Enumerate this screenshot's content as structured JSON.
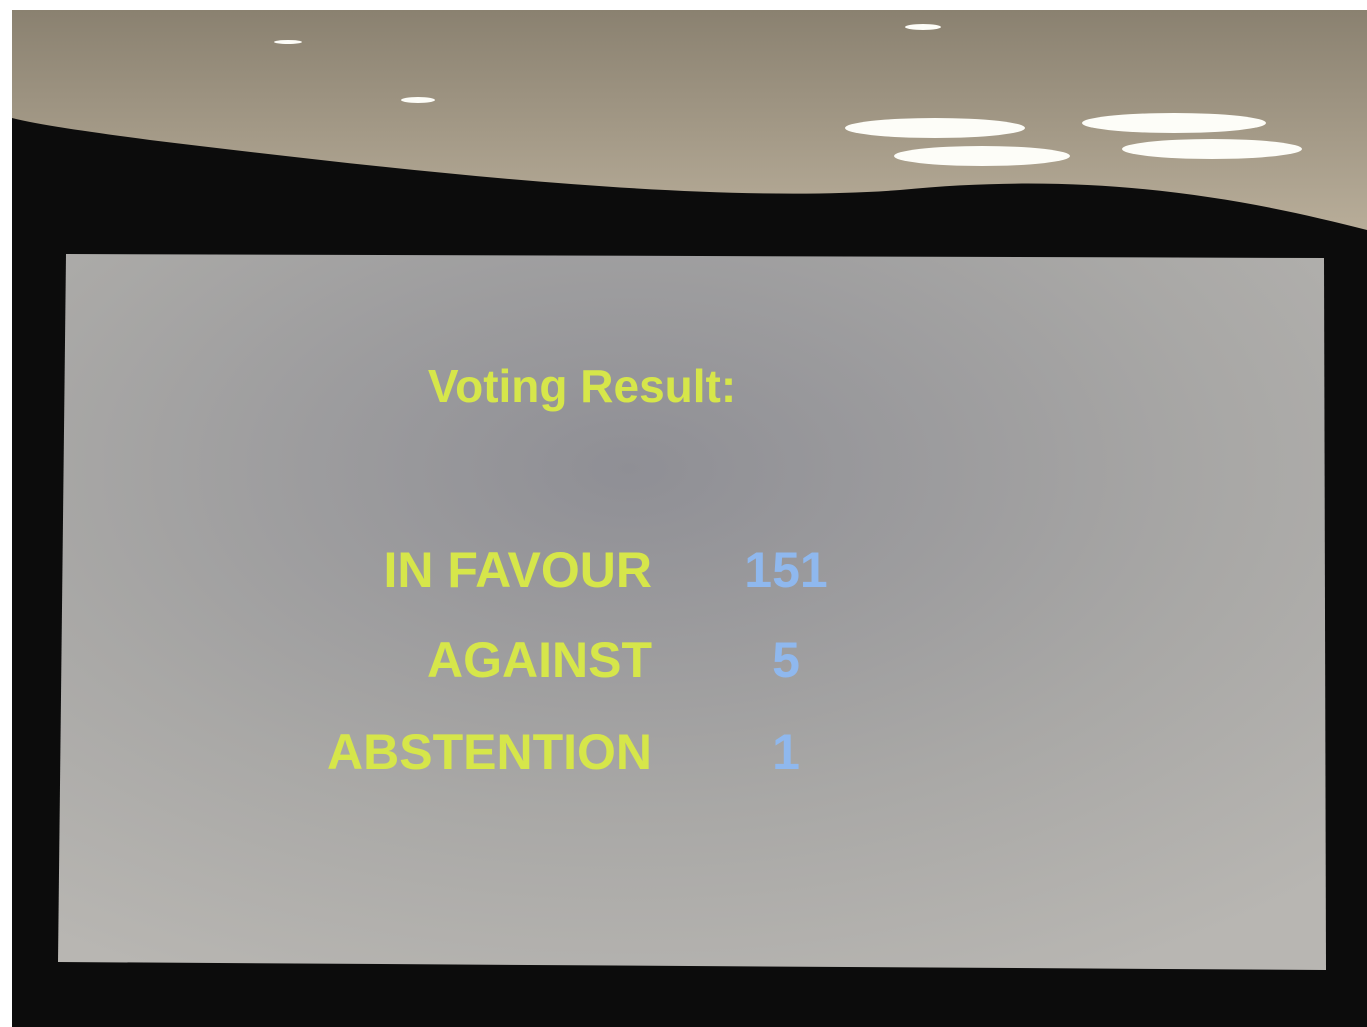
{
  "title": "Voting Result:",
  "rows": [
    {
      "label": "IN FAVOUR",
      "value": 151
    },
    {
      "label": "AGAINST",
      "value": 5
    },
    {
      "label": "ABSTENTION",
      "value": 1
    }
  ]
}
